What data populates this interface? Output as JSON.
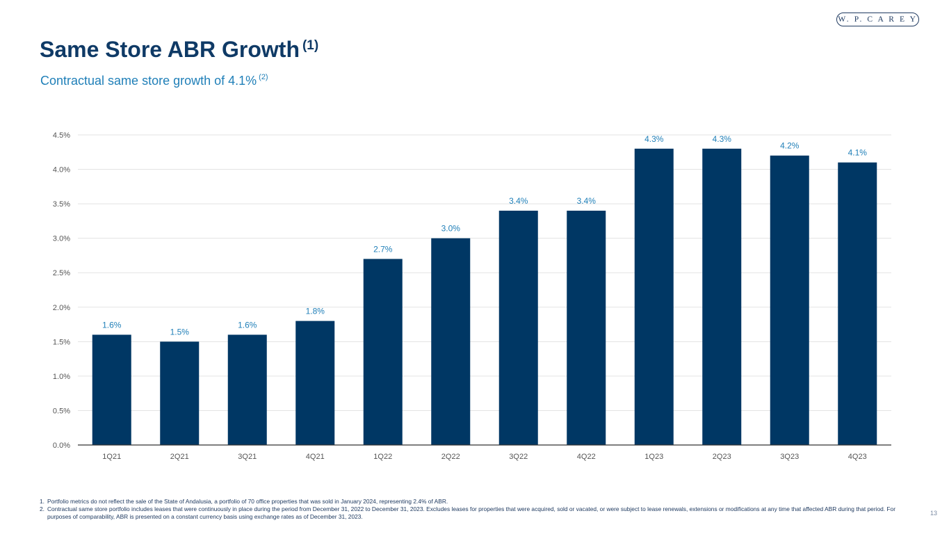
{
  "logo": {
    "text": "W. P. C A R E Y"
  },
  "header": {
    "title": "Same Store ABR Growth",
    "title_note": "(1)",
    "subtitle": "Contractual same store growth of 4.1%",
    "subtitle_note": "(2)"
  },
  "colors": {
    "bar": "#003764",
    "data_label": "#1f7fb8",
    "title": "#0f3a66",
    "axis_text": "#555555"
  },
  "chart_data": {
    "type": "bar",
    "title": "",
    "xlabel": "",
    "ylabel": "",
    "categories": [
      "1Q21",
      "2Q21",
      "3Q21",
      "4Q21",
      "1Q22",
      "2Q22",
      "3Q22",
      "4Q22",
      "1Q23",
      "2Q23",
      "3Q23",
      "4Q23"
    ],
    "values": [
      1.6,
      1.5,
      1.6,
      1.8,
      2.7,
      3.0,
      3.4,
      3.4,
      4.3,
      4.3,
      4.2,
      4.1
    ],
    "data_labels": [
      "1.6%",
      "1.5%",
      "1.6%",
      "1.8%",
      "2.7%",
      "3.0%",
      "3.4%",
      "3.4%",
      "4.3%",
      "4.3%",
      "4.2%",
      "4.1%"
    ],
    "ylim": [
      0,
      4.5
    ],
    "yticks": [
      0,
      0.5,
      1.0,
      1.5,
      2.0,
      2.5,
      3.0,
      3.5,
      4.0,
      4.5
    ],
    "ytick_labels": [
      "0.0%",
      "0.5%",
      "1.0%",
      "1.5%",
      "2.0%",
      "2.5%",
      "3.0%",
      "3.5%",
      "4.0%",
      "4.5%"
    ],
    "grid": true,
    "legend": "none"
  },
  "footnotes": [
    {
      "num": "1.",
      "text": "Portfolio metrics do not reflect the sale of the State of Andalusia, a portfolio of 70 office properties that was sold in January 2024, representing 2.4% of ABR."
    },
    {
      "num": "2.",
      "text": "Contractual same store portfolio includes leases that were continuously in place during the period from December 31, 2022 to December 31, 2023. Excludes leases for properties that were acquired, sold or vacated, or were subject to lease renewals, extensions or modifications at any time that affected ABR during that period. For purposes of comparability, ABR is presented on a constant currency basis using exchange rates as of December 31, 2023."
    }
  ],
  "page_number": "13"
}
